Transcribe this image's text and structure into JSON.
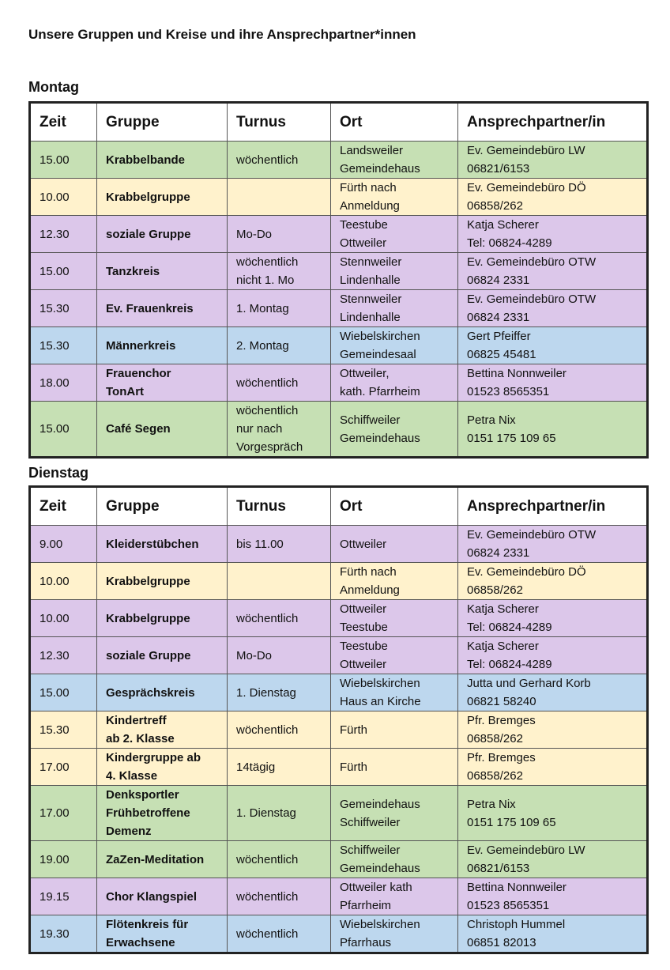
{
  "title": "Unsere Gruppen und Kreise und ihre Ansprechpartner*innen",
  "colors": {
    "green": "#c6e0b4",
    "yellow": "#fff2cc",
    "purple": "#dcc7ea",
    "blue": "#bdd7ee"
  },
  "headers": [
    "Zeit",
    "Gruppe",
    "Turnus",
    "Ort",
    "Ansprechpartner/in"
  ],
  "days": [
    {
      "name": "Montag",
      "rows": [
        {
          "color": "green",
          "cells": [
            [
              "15.00"
            ],
            [
              "Krabbelbande"
            ],
            [
              "wöchentlich"
            ],
            [
              "Landsweiler",
              "Gemeindehaus"
            ],
            [
              "Ev. Gemeindebüro LW",
              "06821/6153"
            ]
          ]
        },
        {
          "color": "yellow",
          "cells": [
            [
              "10.00"
            ],
            [
              "Krabbelgruppe"
            ],
            [],
            [
              "Fürth nach",
              "Anmeldung"
            ],
            [
              "Ev. Gemeindebüro DÖ",
              "06858/262"
            ]
          ]
        },
        {
          "color": "purple",
          "cells": [
            [
              "12.30"
            ],
            [
              "soziale Gruppe"
            ],
            [
              "Mo-Do"
            ],
            [
              "Teestube",
              "Ottweiler"
            ],
            [
              "Katja Scherer",
              "Tel:  06824-4289"
            ]
          ]
        },
        {
          "color": "purple",
          "cells": [
            [
              "15.00"
            ],
            [
              "Tanzkreis"
            ],
            [
              "wöchentlich",
              "nicht 1. Mo"
            ],
            [
              "Stennweiler",
              "Lindenhalle"
            ],
            [
              "Ev. Gemeindebüro OTW",
              "06824 2331"
            ]
          ]
        },
        {
          "color": "purple",
          "cells": [
            [
              "15.30"
            ],
            [
              "Ev. Frauenkreis"
            ],
            [
              "1. Montag"
            ],
            [
              "Stennweiler",
              "Lindenhalle"
            ],
            [
              "Ev. Gemeindebüro OTW",
              "06824 2331"
            ]
          ]
        },
        {
          "color": "blue",
          "cells": [
            [
              "15.30"
            ],
            [
              "Männerkreis"
            ],
            [
              "2. Montag"
            ],
            [
              "Wiebelskirchen",
              "Gemeindesaal"
            ],
            [
              "Gert Pfeiffer",
              "06825 45481"
            ]
          ]
        },
        {
          "color": "purple",
          "cells": [
            [
              "18.00"
            ],
            [
              "Frauenchor",
              "TonArt"
            ],
            [
              "wöchentlich"
            ],
            [
              "Ottweiler,",
              "kath. Pfarrheim"
            ],
            [
              "Bettina Nonnweiler",
              "01523 8565351"
            ]
          ]
        },
        {
          "color": "green",
          "cells": [
            [
              "15.00"
            ],
            [
              "Café Segen"
            ],
            [
              "wöchentlich",
              "nur nach",
              "Vorgespräch"
            ],
            [
              "Schiffweiler",
              "Gemeindehaus"
            ],
            [
              "Petra Nix",
              "0151 175 109 65"
            ]
          ]
        }
      ]
    },
    {
      "name": "Dienstag",
      "rows": [
        {
          "color": "purple",
          "cells": [
            [
              "9.00"
            ],
            [
              "Kleiderstübchen"
            ],
            [
              "bis 11.00"
            ],
            [
              "Ottweiler"
            ],
            [
              "Ev. Gemeindebüro OTW",
              "06824 2331"
            ]
          ]
        },
        {
          "color": "yellow",
          "cells": [
            [
              "10.00"
            ],
            [
              "Krabbelgruppe"
            ],
            [],
            [
              "Fürth nach",
              "Anmeldung"
            ],
            [
              "Ev. Gemeindebüro DÖ",
              "06858/262"
            ]
          ]
        },
        {
          "color": "purple",
          "cells": [
            [
              "10.00"
            ],
            [
              "Krabbelgruppe"
            ],
            [
              "wöchentlich"
            ],
            [
              "Ottweiler",
              "Teestube"
            ],
            [
              "Katja Scherer",
              "Tel:  06824-4289"
            ]
          ]
        },
        {
          "color": "purple",
          "cells": [
            [
              "12.30"
            ],
            [
              "soziale Gruppe"
            ],
            [
              "Mo-Do"
            ],
            [
              "Teestube",
              "Ottweiler"
            ],
            [
              "Katja Scherer",
              "Tel:  06824-4289"
            ]
          ]
        },
        {
          "color": "blue",
          "cells": [
            [
              "15.00"
            ],
            [
              "Gesprächskreis"
            ],
            [
              "1. Dienstag"
            ],
            [
              "Wiebelskirchen",
              "Haus an Kirche"
            ],
            [
              "Jutta und Gerhard Korb",
              "06821 58240"
            ]
          ]
        },
        {
          "color": "yellow",
          "cells": [
            [
              "15.30"
            ],
            [
              "Kindertreff",
              "ab 2. Klasse"
            ],
            [
              "wöchentlich"
            ],
            [
              "Fürth"
            ],
            [
              "Pfr. Bremges",
              "06858/262"
            ]
          ]
        },
        {
          "color": "yellow",
          "cells": [
            [
              "17.00"
            ],
            [
              "Kindergruppe ab",
              "4. Klasse"
            ],
            [
              "14tägig"
            ],
            [
              "Fürth"
            ],
            [
              "Pfr. Bremges",
              "06858/262"
            ]
          ]
        },
        {
          "color": "green",
          "cells": [
            [
              "17.00"
            ],
            [
              "Denksportler",
              "Frühbetroffene",
              "Demenz"
            ],
            [
              "1. Dienstag"
            ],
            [
              "Gemeindehaus",
              "Schiffweiler"
            ],
            [
              "Petra Nix",
              "0151 175 109 65"
            ]
          ]
        },
        {
          "color": "green",
          "cells": [
            [
              "19.00"
            ],
            [
              "ZaZen-Meditation"
            ],
            [
              "wöchentlich"
            ],
            [
              "Schiffweiler",
              "Gemeindehaus"
            ],
            [
              "Ev. Gemeindebüro LW",
              "06821/6153"
            ]
          ]
        },
        {
          "color": "purple",
          "cells": [
            [
              "19.15"
            ],
            [
              "Chor Klangspiel"
            ],
            [
              "wöchentlich"
            ],
            [
              "Ottweiler kath",
              "Pfarrheim"
            ],
            [
              "Bettina Nonnweiler",
              "01523 8565351"
            ]
          ]
        },
        {
          "color": "blue",
          "cells": [
            [
              "19.30"
            ],
            [
              "Flötenkreis für",
              "Erwachsene"
            ],
            [
              "wöchentlich"
            ],
            [
              "Wiebelskirchen",
              "Pfarrhaus"
            ],
            [
              "Christoph Hummel",
              "06851 82013"
            ]
          ]
        }
      ]
    }
  ]
}
